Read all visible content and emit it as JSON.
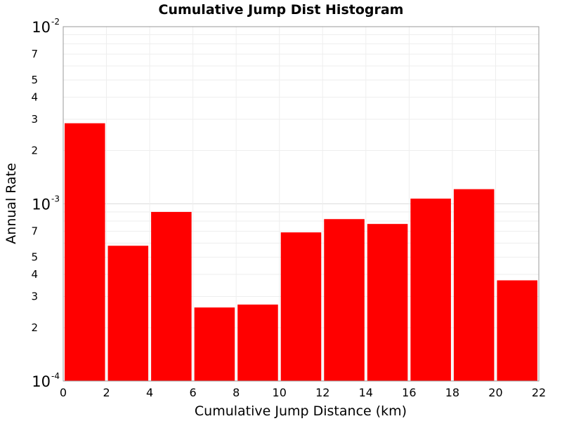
{
  "chart_data": {
    "type": "bar",
    "title": "Cumulative Jump Dist Histogram",
    "xlabel": "Cumulative Jump Distance (km)",
    "ylabel": "Annual Rate",
    "y_scale": "log",
    "xlim": [
      0,
      22
    ],
    "ylim": [
      0.0001,
      0.01
    ],
    "grid": true,
    "x_ticks": [
      "0",
      "2",
      "4",
      "6",
      "8",
      "10",
      "12",
      "14",
      "16",
      "18",
      "20",
      "22"
    ],
    "y_major_ticks": [
      {
        "value": 0.01,
        "base": "10",
        "exp": "-2"
      },
      {
        "value": 0.001,
        "base": "10",
        "exp": "-3"
      },
      {
        "value": 0.0001,
        "base": "10",
        "exp": "-4"
      }
    ],
    "y_minor_ticks": [
      "2",
      "3",
      "4",
      "5",
      "7"
    ],
    "bar_color": "#ff0000",
    "bars": [
      {
        "x0": 0,
        "x1": 2,
        "value": 0.00285
      },
      {
        "x0": 2,
        "x1": 4,
        "value": 0.00058
      },
      {
        "x0": 4,
        "x1": 6,
        "value": 0.0009
      },
      {
        "x0": 6,
        "x1": 8,
        "value": 0.00026
      },
      {
        "x0": 8,
        "x1": 10,
        "value": 0.00027
      },
      {
        "x0": 10,
        "x1": 12,
        "value": 0.00069
      },
      {
        "x0": 12,
        "x1": 14,
        "value": 0.00082
      },
      {
        "x0": 14,
        "x1": 16,
        "value": 0.00077
      },
      {
        "x0": 16,
        "x1": 18,
        "value": 0.00107
      },
      {
        "x0": 18,
        "x1": 20,
        "value": 0.00121
      },
      {
        "x0": 20,
        "x1": 22,
        "value": 0.00037
      }
    ]
  }
}
